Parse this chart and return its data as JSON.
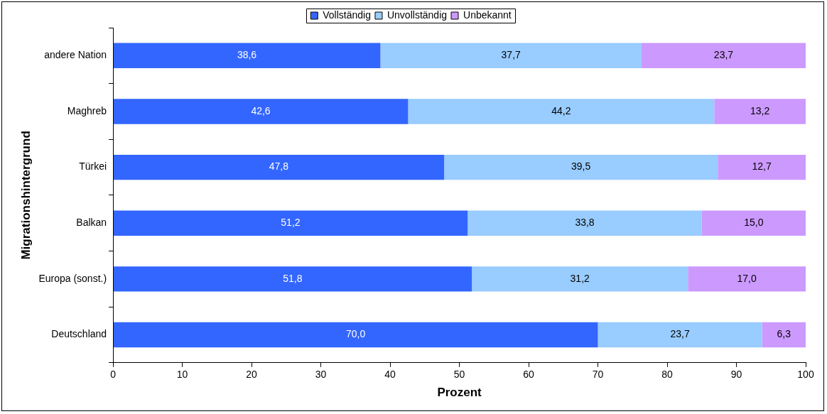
{
  "chart_data": {
    "type": "bar",
    "orientation": "horizontal",
    "stacked": true,
    "xlabel": "Prozent",
    "ylabel": "Migrationshintergrund",
    "categories": [
      "andere Nation",
      "Maghreb",
      "Türkei",
      "Balkan",
      "Europa (sonst.)",
      "Deutschland"
    ],
    "series": [
      {
        "name": "Vollständig",
        "color": "#3366ff",
        "values": [
          38.6,
          42.6,
          47.8,
          51.2,
          51.8,
          70.0
        ],
        "value_labels": [
          "38,6",
          "42,6",
          "47,8",
          "51,2",
          "51,8",
          "70,0"
        ]
      },
      {
        "name": "Unvollständig",
        "color": "#99ccff",
        "values": [
          37.7,
          44.2,
          39.5,
          33.8,
          31.2,
          23.7
        ],
        "value_labels": [
          "37,7",
          "44,2",
          "39,5",
          "33,8",
          "31,2",
          "23,7"
        ]
      },
      {
        "name": "Unbekannt",
        "color": "#cc99ff",
        "values": [
          23.7,
          13.2,
          12.7,
          15.0,
          17.0,
          6.3
        ],
        "value_labels": [
          "23,7",
          "13,2",
          "12,7",
          "15,0",
          "17,0",
          "6,3"
        ]
      }
    ],
    "xlim": [
      0,
      100
    ],
    "xticks": [
      0,
      10,
      20,
      30,
      40,
      50,
      60,
      70,
      80,
      90,
      100
    ],
    "grid": false,
    "legend": "top"
  }
}
